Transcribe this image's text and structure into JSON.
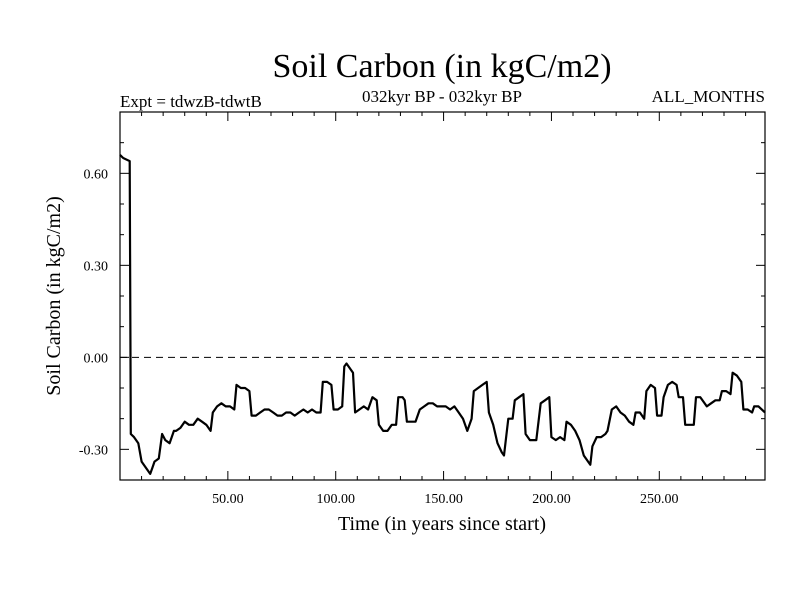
{
  "chart_data": {
    "type": "line",
    "title": "Soil Carbon (in kgC/m2)",
    "left_header": "Expt = tdwzB-tdwtB",
    "center_header": "032kyr BP - 032kyr BP",
    "right_header": "ALL_MONTHS",
    "xlabel": "Time (in years since start)",
    "ylabel": "Soil Carbon (in kgC/m2)",
    "xlim": [
      0,
      299
    ],
    "ylim": [
      -0.4,
      0.8
    ],
    "xticks": [
      50,
      100,
      150,
      200,
      250
    ],
    "xtick_labels": [
      "50.00",
      "100.00",
      "150.00",
      "200.00",
      "250.00"
    ],
    "yticks": [
      -0.3,
      0,
      0.3,
      0.6
    ],
    "ytick_labels": [
      "-0.30",
      "0.00",
      "0.30",
      "0.60"
    ],
    "zero_line": true,
    "grid": false,
    "series": [
      {
        "points": [
          [
            0,
            0.66
          ],
          [
            1.5,
            0.65
          ],
          [
            4.5,
            0.64
          ],
          [
            5,
            -0.25
          ],
          [
            6.5,
            -0.26
          ],
          [
            8.5,
            -0.28
          ],
          [
            10,
            -0.34
          ],
          [
            12,
            -0.36
          ],
          [
            14,
            -0.38
          ],
          [
            15,
            -0.36
          ],
          [
            16,
            -0.34
          ],
          [
            18,
            -0.33
          ],
          [
            19.5,
            -0.25
          ],
          [
            21,
            -0.27
          ],
          [
            23,
            -0.28
          ],
          [
            25,
            -0.24
          ],
          [
            26,
            -0.24
          ],
          [
            28,
            -0.23
          ],
          [
            30,
            -0.21
          ],
          [
            32,
            -0.22
          ],
          [
            34,
            -0.22
          ],
          [
            36,
            -0.2
          ],
          [
            38,
            -0.21
          ],
          [
            40,
            -0.22
          ],
          [
            42,
            -0.24
          ],
          [
            43,
            -0.18
          ],
          [
            45,
            -0.16
          ],
          [
            47,
            -0.15
          ],
          [
            49,
            -0.16
          ],
          [
            51,
            -0.16
          ],
          [
            53,
            -0.17
          ],
          [
            54,
            -0.09
          ],
          [
            56,
            -0.1
          ],
          [
            58,
            -0.1
          ],
          [
            60,
            -0.11
          ],
          [
            61,
            -0.19
          ],
          [
            63,
            -0.19
          ],
          [
            65,
            -0.18
          ],
          [
            67,
            -0.17
          ],
          [
            69,
            -0.17
          ],
          [
            71,
            -0.18
          ],
          [
            73,
            -0.19
          ],
          [
            75,
            -0.19
          ],
          [
            77,
            -0.18
          ],
          [
            79,
            -0.18
          ],
          [
            81,
            -0.19
          ],
          [
            83,
            -0.18
          ],
          [
            85,
            -0.17
          ],
          [
            87,
            -0.18
          ],
          [
            89,
            -0.17
          ],
          [
            91,
            -0.18
          ],
          [
            93,
            -0.18
          ],
          [
            94,
            -0.08
          ],
          [
            96,
            -0.08
          ],
          [
            98,
            -0.09
          ],
          [
            99,
            -0.17
          ],
          [
            101,
            -0.17
          ],
          [
            103,
            -0.16
          ],
          [
            104,
            -0.03
          ],
          [
            105,
            -0.02
          ],
          [
            107,
            -0.04
          ],
          [
            108,
            -0.05
          ],
          [
            109,
            -0.18
          ],
          [
            111,
            -0.17
          ],
          [
            113,
            -0.16
          ],
          [
            115,
            -0.17
          ],
          [
            117,
            -0.13
          ],
          [
            119,
            -0.14
          ],
          [
            120,
            -0.22
          ],
          [
            122,
            -0.24
          ],
          [
            124,
            -0.24
          ],
          [
            126,
            -0.22
          ],
          [
            128,
            -0.22
          ],
          [
            129,
            -0.13
          ],
          [
            131,
            -0.13
          ],
          [
            132,
            -0.14
          ],
          [
            133,
            -0.21
          ],
          [
            135,
            -0.21
          ],
          [
            137,
            -0.21
          ],
          [
            139,
            -0.17
          ],
          [
            141,
            -0.16
          ],
          [
            143,
            -0.15
          ],
          [
            145,
            -0.15
          ],
          [
            147,
            -0.16
          ],
          [
            149,
            -0.16
          ],
          [
            151,
            -0.16
          ],
          [
            153,
            -0.17
          ],
          [
            155,
            -0.16
          ],
          [
            157,
            -0.18
          ],
          [
            159,
            -0.2
          ],
          [
            161,
            -0.24
          ],
          [
            163,
            -0.2
          ],
          [
            164,
            -0.11
          ],
          [
            166,
            -0.1
          ],
          [
            168,
            -0.09
          ],
          [
            170,
            -0.08
          ],
          [
            171,
            -0.18
          ],
          [
            173,
            -0.22
          ],
          [
            175,
            -0.28
          ],
          [
            177,
            -0.31
          ],
          [
            178,
            -0.32
          ],
          [
            180,
            -0.2
          ],
          [
            182,
            -0.2
          ],
          [
            183,
            -0.14
          ],
          [
            185,
            -0.13
          ],
          [
            187,
            -0.12
          ],
          [
            188,
            -0.25
          ],
          [
            190,
            -0.27
          ],
          [
            192,
            -0.27
          ],
          [
            193,
            -0.27
          ],
          [
            195,
            -0.15
          ],
          [
            197,
            -0.14
          ],
          [
            199,
            -0.13
          ],
          [
            200,
            -0.26
          ],
          [
            202,
            -0.27
          ],
          [
            204,
            -0.26
          ],
          [
            206,
            -0.27
          ],
          [
            207,
            -0.21
          ],
          [
            209,
            -0.22
          ],
          [
            211,
            -0.24
          ],
          [
            213,
            -0.27
          ],
          [
            215,
            -0.32
          ],
          [
            217,
            -0.34
          ],
          [
            218,
            -0.35
          ],
          [
            219,
            -0.29
          ],
          [
            221,
            -0.26
          ],
          [
            223,
            -0.26
          ],
          [
            225,
            -0.25
          ],
          [
            226,
            -0.24
          ],
          [
            228,
            -0.17
          ],
          [
            230,
            -0.16
          ],
          [
            232,
            -0.18
          ],
          [
            234,
            -0.19
          ],
          [
            236,
            -0.21
          ],
          [
            238,
            -0.22
          ],
          [
            239,
            -0.18
          ],
          [
            241,
            -0.18
          ],
          [
            243,
            -0.2
          ],
          [
            244,
            -0.11
          ],
          [
            246,
            -0.09
          ],
          [
            248,
            -0.1
          ],
          [
            249,
            -0.19
          ],
          [
            251,
            -0.19
          ],
          [
            252,
            -0.13
          ],
          [
            254,
            -0.09
          ],
          [
            256,
            -0.08
          ],
          [
            258,
            -0.09
          ],
          [
            259,
            -0.13
          ],
          [
            261,
            -0.13
          ],
          [
            262,
            -0.22
          ],
          [
            264,
            -0.22
          ],
          [
            266,
            -0.22
          ],
          [
            267,
            -0.13
          ],
          [
            269,
            -0.13
          ],
          [
            271,
            -0.15
          ],
          [
            272,
            -0.16
          ],
          [
            274,
            -0.15
          ],
          [
            276,
            -0.14
          ],
          [
            278,
            -0.14
          ],
          [
            279,
            -0.11
          ],
          [
            281,
            -0.11
          ],
          [
            283,
            -0.12
          ],
          [
            284,
            -0.05
          ],
          [
            286,
            -0.06
          ],
          [
            288,
            -0.08
          ],
          [
            289,
            -0.17
          ],
          [
            291,
            -0.17
          ],
          [
            293,
            -0.18
          ],
          [
            294,
            -0.16
          ],
          [
            296,
            -0.16
          ],
          [
            299,
            -0.18
          ]
        ]
      }
    ]
  }
}
